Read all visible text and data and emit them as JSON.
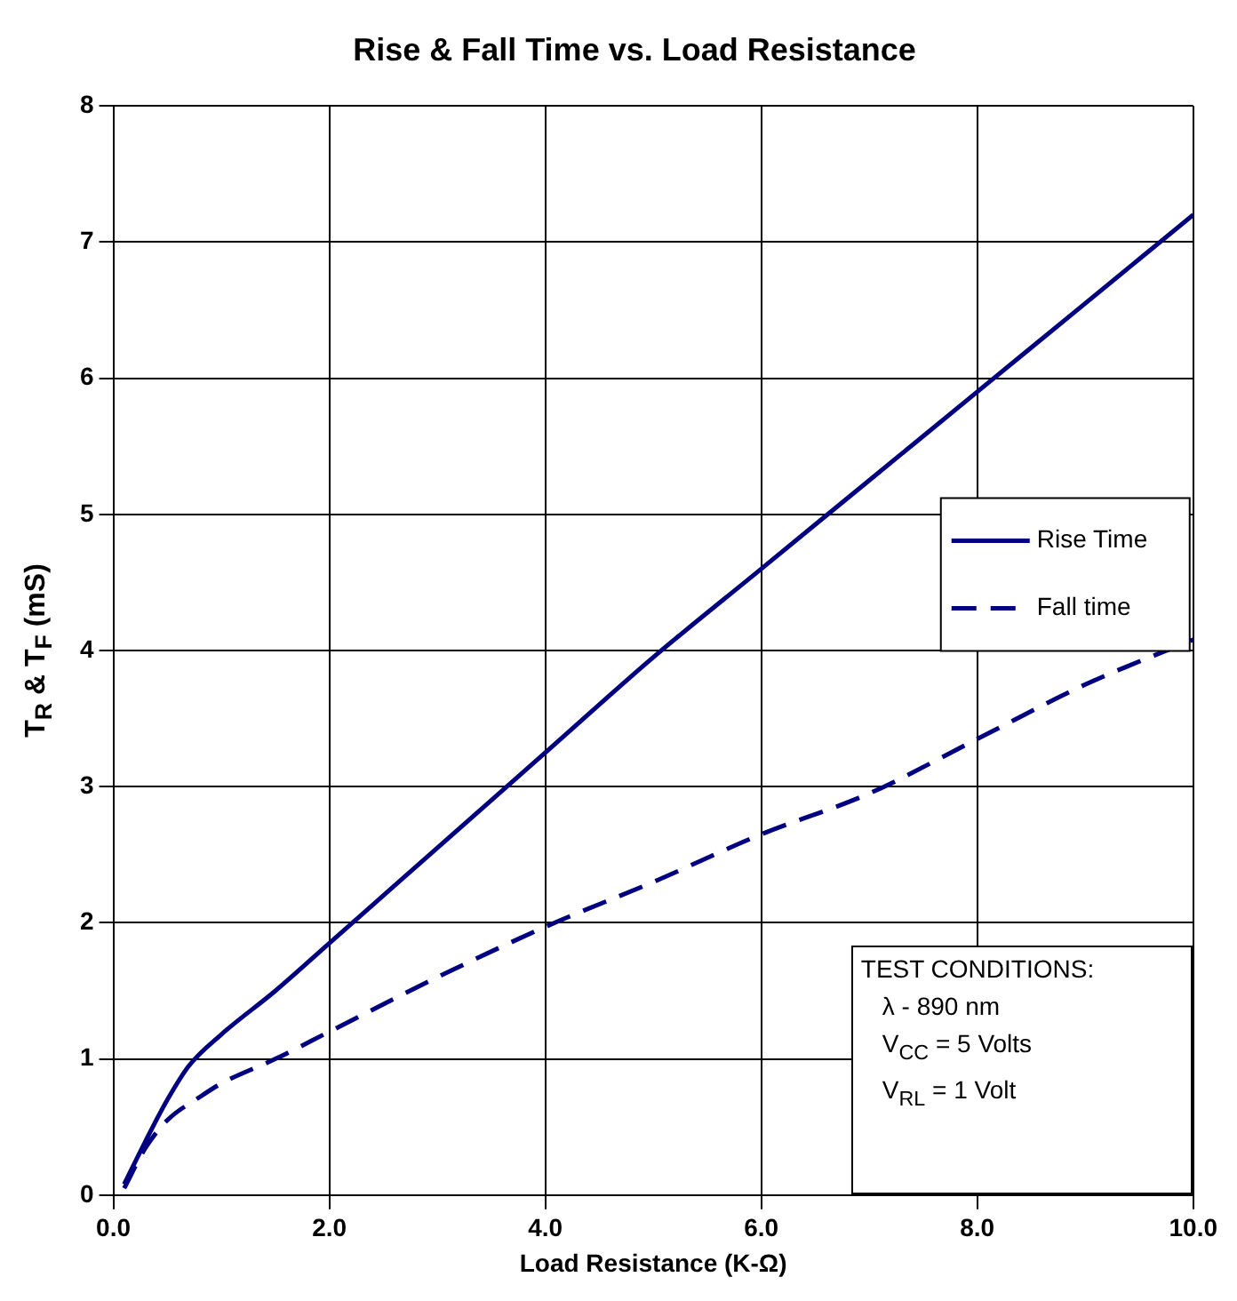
{
  "chart_data": {
    "type": "line",
    "title": "Rise & Fall Time vs. Load Resistance",
    "xlabel": "Load Resistance (K-Ω)",
    "ylabel": "T$_{R}$ & T$_{F}$ (mS)",
    "xlim": [
      0,
      10
    ],
    "xticks": [
      {
        "value": 0,
        "label": "0.0"
      },
      {
        "value": 2,
        "label": "2.0"
      },
      {
        "value": 4,
        "label": "4.0"
      },
      {
        "value": 6,
        "label": "6.0"
      },
      {
        "value": 8,
        "label": "8.0"
      },
      {
        "value": 10,
        "label": "10.0"
      }
    ],
    "ylim": [
      0,
      8
    ],
    "yticks": [
      0,
      1,
      2,
      3,
      4,
      5,
      6,
      7,
      8
    ],
    "grid": true,
    "legend": "right",
    "marker": "none",
    "series": [
      {
        "name": "Rise Time",
        "color": "#000080",
        "line_style": "solid",
        "x": [
          0.1,
          0.3,
          0.5,
          0.7,
          1.0,
          1.5,
          2,
          3,
          4,
          5,
          6,
          7,
          8,
          9,
          10
        ],
        "values": [
          0.08,
          0.4,
          0.7,
          0.95,
          1.18,
          1.5,
          1.85,
          2.55,
          3.25,
          3.95,
          4.6,
          5.25,
          5.9,
          6.55,
          7.2
        ]
      },
      {
        "name": "Fall time",
        "color": "#000080",
        "line_style": "dashed",
        "x": [
          0.1,
          0.3,
          0.5,
          0.8,
          1.0,
          1.5,
          2,
          3,
          4,
          5,
          6,
          7,
          8,
          9,
          10
        ],
        "values": [
          0.05,
          0.35,
          0.55,
          0.72,
          0.82,
          1.0,
          1.2,
          1.6,
          1.97,
          2.3,
          2.65,
          2.95,
          3.35,
          3.75,
          4.08
        ]
      }
    ],
    "annotations": [
      "TEST CONDITIONS:",
      "λ - 890 nm",
      "V$_{CC}$ = 5 Volts",
      "V$_{RL}$ = 1 Volt"
    ]
  }
}
